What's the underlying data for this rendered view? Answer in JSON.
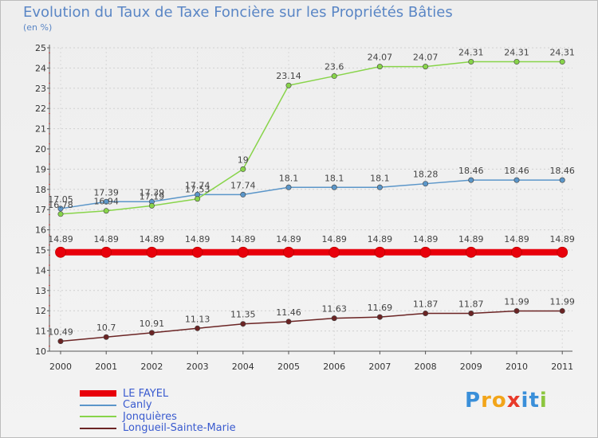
{
  "chart_data": {
    "type": "line",
    "title": "Evolution du Taux de Taxe Foncière sur les Propriétés Bâties",
    "unit": "(en %)",
    "x": [
      "2000",
      "2001",
      "2002",
      "2003",
      "2004",
      "2005",
      "2006",
      "2007",
      "2008",
      "2009",
      "2010",
      "2011"
    ],
    "ylim": [
      10,
      25
    ],
    "yticks": [
      10,
      11,
      12,
      13,
      14,
      15,
      16,
      17,
      18,
      19,
      20,
      21,
      22,
      23,
      24,
      25
    ],
    "series": [
      {
        "name": "LE FAYEL",
        "color": "#e8000b",
        "values": [
          14.89,
          14.89,
          14.89,
          14.89,
          14.89,
          14.89,
          14.89,
          14.89,
          14.89,
          14.89,
          14.89,
          14.89
        ],
        "labels": [
          "14.89",
          "14.89",
          "14.89",
          "14.89",
          "14.89",
          "14.89",
          "14.89",
          "14.89",
          "14.89",
          "14.89",
          "14.89",
          "14.89"
        ]
      },
      {
        "name": "Canly",
        "color": "#5b96c9",
        "values": [
          17.05,
          17.39,
          17.39,
          17.74,
          17.74,
          18.1,
          18.1,
          18.1,
          18.28,
          18.46,
          18.46,
          18.46
        ],
        "labels": [
          "17.05",
          "17.39",
          "17.39",
          "17.74",
          "17.74",
          "18.1",
          "18.1",
          "18.1",
          "18.28",
          "18.46",
          "18.46",
          "18.46"
        ]
      },
      {
        "name": "Jonquières",
        "color": "#88d44a",
        "values": [
          16.78,
          16.94,
          17.19,
          17.53,
          19,
          23.14,
          23.6,
          24.07,
          24.07,
          24.31,
          24.31,
          24.31
        ],
        "labels": [
          "16.78",
          "16.94",
          "17.19",
          "17.53",
          "19",
          "23.14",
          "23.6",
          "24.07",
          "24.07",
          "24.31",
          "24.31",
          "24.31"
        ]
      },
      {
        "name": "Longueil-Sainte-Marie",
        "color": "#6b2424",
        "values": [
          10.49,
          10.7,
          10.91,
          11.13,
          11.35,
          11.46,
          11.63,
          11.69,
          11.87,
          11.87,
          11.99,
          11.99
        ],
        "labels": [
          "10.49",
          "10.7",
          "10.91",
          "11.13",
          "11.35",
          "11.46",
          "11.63",
          "11.69",
          "11.87",
          "11.87",
          "11.99",
          "11.99"
        ]
      }
    ]
  },
  "logo": {
    "text": "Proxiti",
    "colors": [
      "#3a8fd9",
      "#f2a51a",
      "#f2a51a",
      "#e83a2a",
      "#3a8fd9",
      "#3a8fd9",
      "#8cc63f"
    ]
  }
}
